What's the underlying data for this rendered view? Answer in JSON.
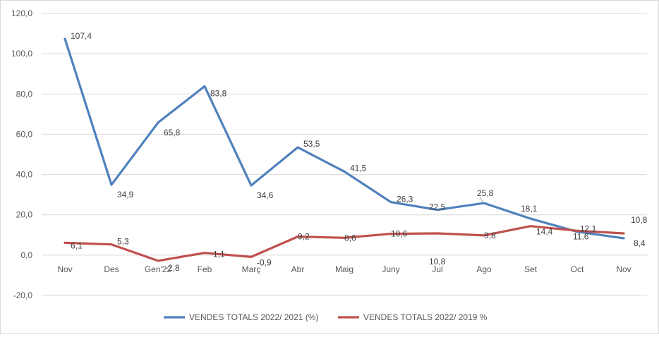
{
  "chart_data": {
    "type": "line",
    "categories": [
      "Nov",
      "Des",
      "Gen'22",
      "Feb",
      "Març",
      "Abr",
      "Maig",
      "Juny",
      "Jul",
      "Ago",
      "Set",
      "Oct",
      "Nov"
    ],
    "ylim": [
      -20,
      120
    ],
    "yticks": [
      "120,0",
      "100,0",
      "80,0",
      "60,0",
      "40,0",
      "20,0",
      "0,0",
      "-20,0"
    ],
    "ytick_values": [
      120,
      100,
      80,
      60,
      40,
      20,
      0,
      -20
    ],
    "grid": true,
    "legend_position": "bottom",
    "series": [
      {
        "name": "VENDES TOTALS 2022/ 2021 (%)",
        "color": "#4f81bd",
        "values": [
          107.4,
          34.9,
          65.8,
          83.8,
          34.6,
          53.5,
          41.5,
          26.3,
          22.5,
          25.8,
          18.1,
          11.6,
          8.4
        ],
        "labels": [
          "107,4",
          "34,9",
          "65,8",
          "83,8",
          "34,6",
          "53,5",
          "41,5",
          "26,3",
          "22,5",
          "25,8",
          "18,1",
          "11,6",
          "8,4"
        ]
      },
      {
        "name": "VENDES TOTALS 2022/ 2019 %",
        "color": "#c0504d",
        "values": [
          6.1,
          5.3,
          -2.8,
          1.1,
          -0.9,
          9.2,
          8.6,
          10.6,
          10.8,
          9.8,
          14.4,
          12.1,
          10.8
        ],
        "labels": [
          "6,1",
          "5,3",
          "-2,8",
          "1,1",
          "-0,9",
          "9,2",
          "8,6",
          "10,6",
          "10,8",
          "9,8",
          "14,4",
          "12,1",
          "10,8"
        ]
      }
    ]
  }
}
